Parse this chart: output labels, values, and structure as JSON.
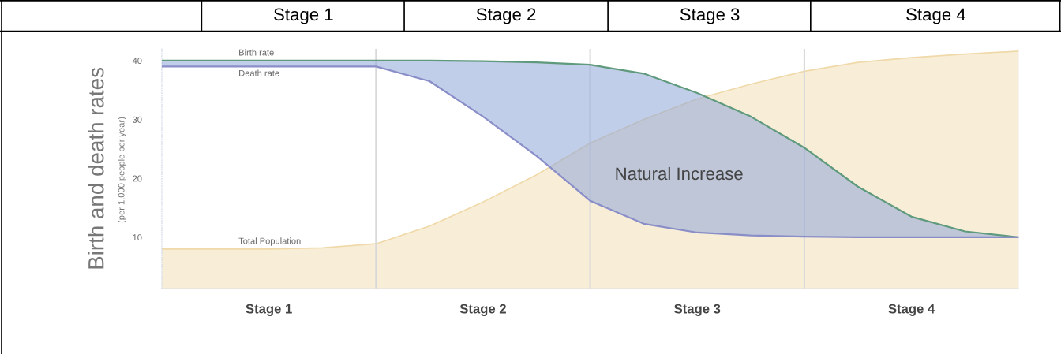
{
  "chart_data": {
    "type": "line",
    "ylabel": "Birth and death rates",
    "annotations": [
      "Stage 1",
      "Stage 2",
      "Stage 3",
      "Stage 4",
      "(per 1,000 people per year)",
      "Natural Increase"
    ],
    "categories": [
      null,
      null,
      "Stage 1",
      null,
      null,
      null,
      "Stage 2",
      null,
      null,
      null,
      "Stage 3",
      null,
      null,
      null,
      "Stage 4",
      null,
      null
    ],
    "ylim": [
      1.3,
      42
    ],
    "yticks": [
      10,
      20,
      30,
      40
    ],
    "series": [
      {
        "name": "Total Population",
        "type": "area",
        "color": "#f0d9a8",
        "values": [
          8,
          8,
          8,
          8.2,
          8.9,
          11.9,
          16,
          20.6,
          26,
          30,
          33.5,
          36,
          38.2,
          39.7,
          40.5,
          41.1,
          41.6
        ]
      },
      {
        "name": "Birth rate",
        "color": "#5f9a7c",
        "values": [
          40,
          40,
          40,
          40,
          40,
          40,
          39.9,
          39.7,
          39.3,
          37.8,
          34.5,
          30.5,
          25.2,
          18.6,
          13.5,
          11,
          10
        ],
        "lower": [
          39,
          39,
          39,
          39,
          39,
          36.5,
          30.5,
          23.8,
          16.2,
          12.3,
          10.8,
          10.3,
          10.1,
          10,
          10,
          10,
          10
        ],
        "upper": [
          40,
          40,
          40,
          40,
          40,
          40,
          39.9,
          39.7,
          39.3,
          37.8,
          34.5,
          30.5,
          25.2,
          18.6,
          13.5,
          11,
          10
        ]
      },
      {
        "name": "Death rate",
        "color": "#8a8ec8",
        "values": [
          39,
          39,
          39,
          39,
          39,
          36.5,
          30.5,
          23.8,
          16.2,
          12.3,
          10.8,
          10.3,
          10.1,
          10,
          10,
          10,
          10
        ]
      }
    ],
    "grid": "x",
    "legend": false,
    "marker": "none",
    "line_style": "solid"
  }
}
